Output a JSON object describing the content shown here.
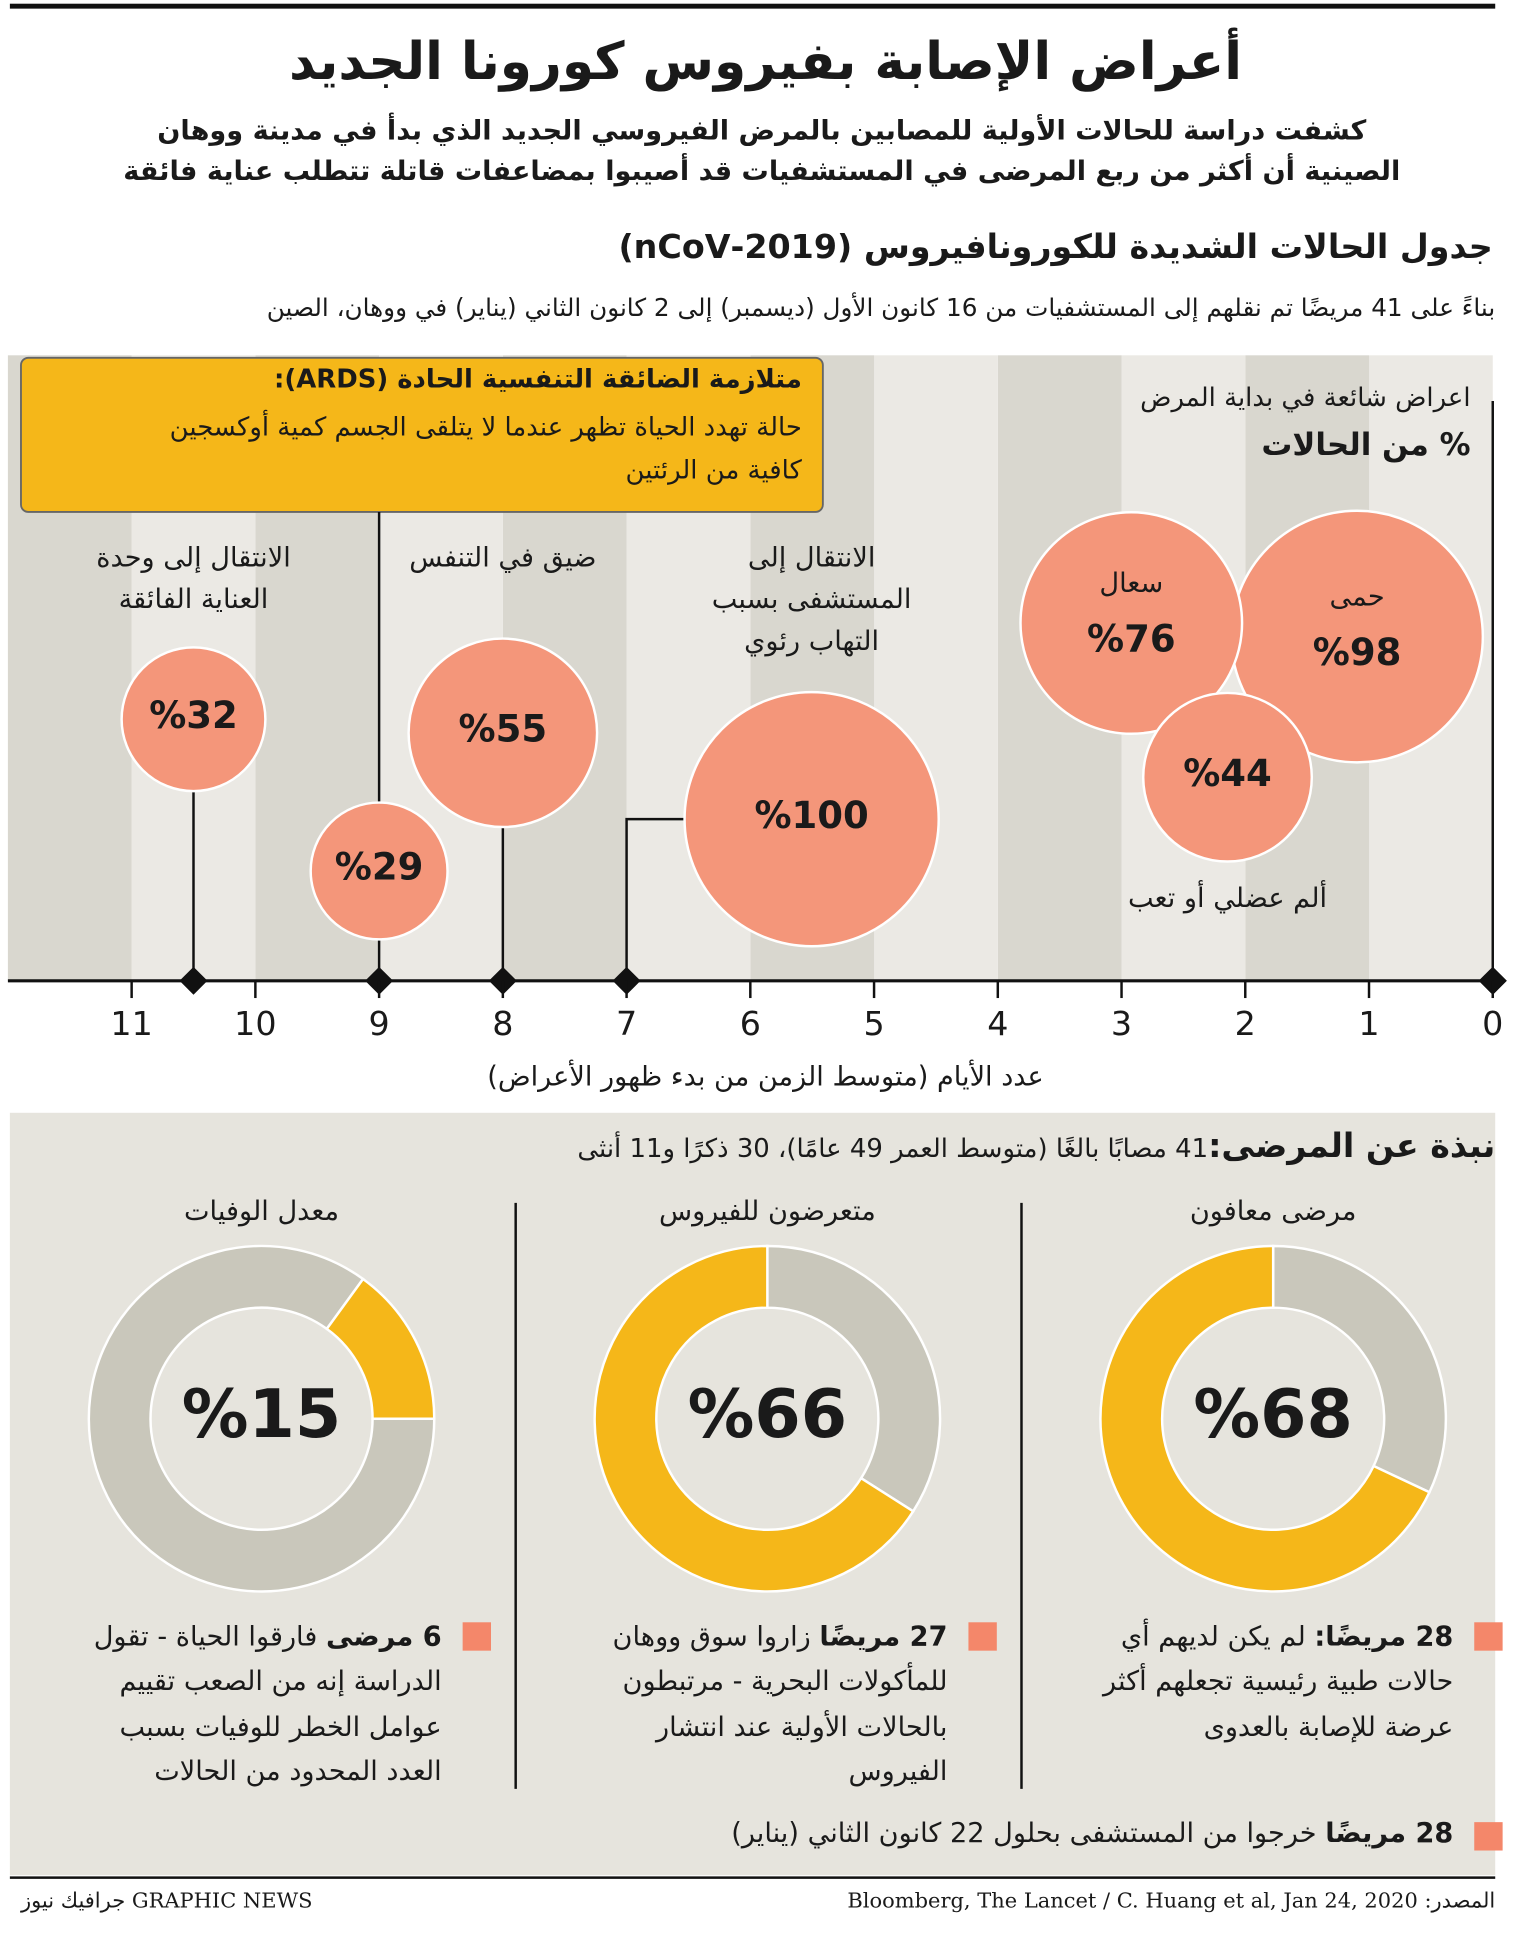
{
  "header": {
    "title": "أعراض الإصابة بفيروس كورونا الجديد",
    "intro": "كشفت دراسة للحالات الأولية للمصابين بالمرض الفيروسي الجديد الذي بدأ في مدينة ووهان الصينية أن أكثر من ربع المرضى في المستشفيات قد أصيبوا بمضاعفات قاتلة تتطلب عناية فائقة"
  },
  "chart_data": [
    {
      "type": "bubble-timeline",
      "title": "جدول الحالات الشديدة للكورونافيروس (2019-nCoV)",
      "subtitle": "بناءً على 41 مريضًا تم نقلهم إلى المستشفيات من 16 كانون الأول (ديسمبر) إلى 2 كانون الثاني (يناير) في ووهان، الصين",
      "legend_title": "اعراض شائعة في بداية المرض",
      "size_label": "% من الحالات",
      "xlabel": "عدد الأيام (متوسط الزمن من بدء ظهور الأعراض)",
      "xlim": [
        0,
        12
      ],
      "xticks": [
        0,
        1,
        2,
        3,
        4,
        5,
        6,
        7,
        8,
        9,
        10,
        11
      ],
      "x_reversed": true,
      "categories": [
        "حمى",
        "سعال",
        "ألم عضلي أو تعب",
        "الانتقال إلى المستشفى بسبب التهاب رئوي",
        "ضيق في التنفس",
        null,
        "الانتقال إلى وحدة العناية الفائقة"
      ],
      "x": [
        0,
        0,
        0,
        7,
        8,
        9,
        10.5
      ],
      "values": [
        98,
        76,
        44,
        100,
        55,
        29,
        32
      ],
      "value_labels": [
        "%98",
        "%76",
        "%44",
        "%100",
        "%55",
        "%29",
        "%32"
      ],
      "color": "#f4967a",
      "annotation": {
        "title": "متلازمة الضائقة التنفسية الحادة (ARDS):",
        "text": "حالة تهدد الحياة تظهر عندما لا يتلقى الجسم كمية أوكسجين كافية من الرئتين",
        "color": "#f5b719"
      }
    },
    {
      "type": "donut",
      "title": "مرضى معافون",
      "value": 68,
      "value_label": "%68",
      "color": "#f5b719",
      "track_color": "#c9c7bb",
      "note": {
        "bold": "28 مريضًا:",
        "text": "لم يكن لديهم أي حالات طبية رئيسية تجعلهم أكثر عرضة للإصابة بالعدوى"
      }
    },
    {
      "type": "donut",
      "title": "متعرضون للفيروس",
      "value": 66,
      "value_label": "%66",
      "color": "#f5b719",
      "track_color": "#c9c7bb",
      "note": {
        "bold": "27 مريضًا",
        "text": "زاروا سوق ووهان للمأكولات البحرية - مرتبطون بالحالات الأولية عند انتشار الفيروس"
      }
    },
    {
      "type": "donut",
      "title": "معدل الوفيات",
      "value": 15,
      "value_label": "%15",
      "color": "#f5b719",
      "track_color": "#c9c7bb",
      "note": {
        "bold": "6 مرضى",
        "text": "فارقوا الحياة - تقول الدراسة إنه من الصعب تقييم عوامل الخطر للوفيات بسبب العدد المحدود من الحالات"
      }
    }
  ],
  "profile": {
    "bold": "نبذة عن المرضى:",
    "text": "41 مصابًا بالغًا (متوسط العمر 49 عامًا)، 30 ذكرًا  و11 أنثى"
  },
  "discharged": {
    "bold": "28 مريضًا",
    "text": "خرجوا من المستشفى بحلول 22 كانون الثاني (يناير)"
  },
  "footer": {
    "source": "المصدر: Bloomberg, The Lancet / C. Huang et al, Jan 24, 2020",
    "credit": "GRAPHIC NEWS جرافيك نيوز"
  }
}
